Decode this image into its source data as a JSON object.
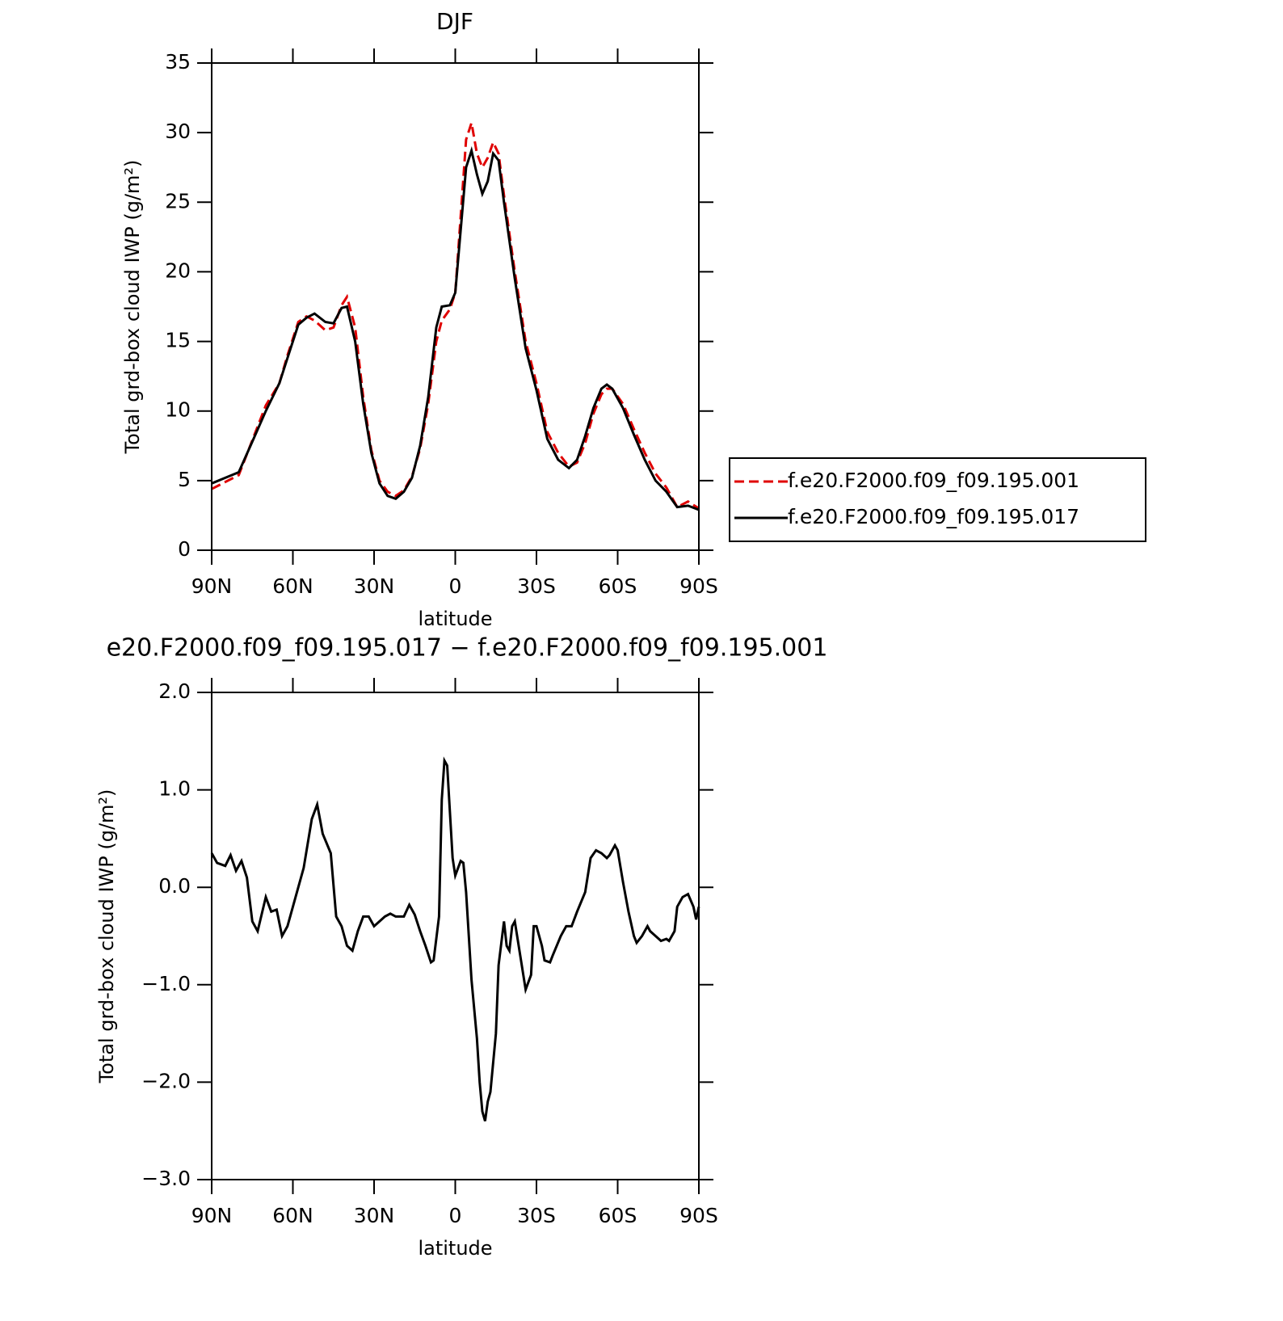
{
  "chart_data": [
    {
      "type": "line",
      "title": "DJF",
      "ylabel": "Total grd-box cloud IWP (g/m²)",
      "xlabel": "latitude",
      "xlim": [
        90,
        -90
      ],
      "xticks": [
        {
          "value": 90,
          "label": "90N"
        },
        {
          "value": 60,
          "label": "60N"
        },
        {
          "value": 30,
          "label": "30N"
        },
        0,
        {
          "value": -30,
          "label": "30S"
        },
        {
          "value": -60,
          "label": "60S"
        },
        {
          "value": -90,
          "label": "90S"
        }
      ],
      "ylim": [
        0,
        35
      ],
      "yticks": [
        0,
        5,
        10,
        15,
        20,
        25,
        30,
        35
      ],
      "legend": "right",
      "x": [
        90,
        85,
        80,
        75,
        70,
        65,
        62,
        58,
        55,
        52,
        48,
        45,
        42,
        40,
        37,
        34,
        31,
        28,
        25,
        22,
        19,
        16,
        13,
        10,
        7,
        5,
        2,
        0,
        -2,
        -4,
        -6,
        -8,
        -10,
        -12,
        -14,
        -16,
        -18,
        -22,
        -26,
        -30,
        -34,
        -38,
        -42,
        -45,
        -48,
        -51,
        -54,
        -56,
        -58,
        -62,
        -66,
        -70,
        -74,
        -78,
        -82,
        -86,
        -90
      ],
      "series": [
        {
          "name": "f.e20.F2000.f09_f09.195.001",
          "color": "#e00000",
          "style": "dashed",
          "values": [
            4.4,
            4.9,
            5.4,
            7.9,
            10.4,
            12,
            14,
            16.4,
            16.8,
            16.5,
            15.8,
            16.0,
            17.6,
            18.2,
            16,
            11,
            7.2,
            5,
            4.2,
            3.9,
            4.3,
            5.3,
            7.3,
            10.5,
            15,
            16.5,
            17.3,
            18.5,
            24,
            29.5,
            30.7,
            28.5,
            27.5,
            28.2,
            29.3,
            28.5,
            25.5,
            20,
            15,
            12,
            8.5,
            7,
            6.0,
            6.3,
            7.7,
            9.8,
            11.2,
            11.6,
            11.6,
            10.5,
            8.7,
            7,
            5.5,
            4.5,
            3.1,
            3.5,
            3.0
          ]
        },
        {
          "name": "f.e20.F2000.f09_f09.195.017",
          "color": "#000000",
          "style": "solid",
          "values": [
            4.8,
            5.2,
            5.6,
            7.8,
            10,
            12,
            13.8,
            16.2,
            16.7,
            17.0,
            16.4,
            16.3,
            17.4,
            17.5,
            15,
            10.5,
            7,
            4.8,
            3.9,
            3.7,
            4.2,
            5.2,
            7.5,
            11,
            16,
            17.5,
            17.6,
            18.5,
            23,
            27.5,
            28.7,
            27,
            25.6,
            26.5,
            28.5,
            28,
            25,
            19.5,
            14.5,
            11.5,
            8,
            6.5,
            5.9,
            6.5,
            8.2,
            10.2,
            11.6,
            11.9,
            11.6,
            10.2,
            8.3,
            6.5,
            5,
            4.2,
            3.1,
            3.2,
            2.9
          ]
        }
      ]
    },
    {
      "type": "line",
      "title": "e20.F2000.f09_f09.195.017 − f.e20.F2000.f09_f09.195.001",
      "ylabel": "Total grd-box cloud IWP (g/m²)",
      "xlabel": "latitude",
      "xlim": [
        90,
        -90
      ],
      "xticks": [
        {
          "value": 90,
          "label": "90N"
        },
        {
          "value": 60,
          "label": "60N"
        },
        {
          "value": 30,
          "label": "30N"
        },
        0,
        {
          "value": -30,
          "label": "30S"
        },
        {
          "value": -60,
          "label": "60S"
        },
        {
          "value": -90,
          "label": "90S"
        }
      ],
      "ylim": [
        -3,
        2
      ],
      "yticks": [
        {
          "value": -3,
          "label": "−3.0"
        },
        {
          "value": -2,
          "label": "−2.0"
        },
        {
          "value": -1,
          "label": "−1.0"
        },
        {
          "value": 0,
          "label": "0.0"
        },
        {
          "value": 1,
          "label": "1.0"
        },
        {
          "value": 2,
          "label": "2.0"
        }
      ],
      "x": [
        90,
        88,
        85,
        83,
        81,
        79,
        77,
        75,
        73,
        70,
        68,
        66,
        64,
        62,
        60,
        58,
        56,
        53,
        51,
        49,
        46,
        44,
        42,
        40,
        38,
        36,
        34,
        32,
        30,
        26,
        24,
        22,
        19,
        17,
        15,
        13,
        11,
        9,
        8,
        6,
        5,
        4,
        3,
        1,
        0,
        -2,
        -3,
        -4,
        -6,
        -8,
        -9,
        -10,
        -11,
        -12,
        -13,
        -15,
        -16,
        -18,
        -19,
        -20,
        -21,
        -22,
        -24,
        -26,
        -28,
        -29,
        -30,
        -32,
        -33,
        -35,
        -36,
        -39,
        -41,
        -43,
        -45,
        -48,
        -50,
        -52,
        -54,
        -56,
        -57,
        -59,
        -60,
        -62,
        -64,
        -66,
        -67,
        -69,
        -71,
        -72,
        -74,
        -76,
        -78,
        -79,
        -81,
        -82,
        -84,
        -86,
        -88,
        -89,
        -90
      ],
      "series": [
        {
          "color": "#000000",
          "style": "solid",
          "values": [
            0.35,
            0.25,
            0.22,
            0.33,
            0.17,
            0.27,
            0.1,
            -0.35,
            -0.45,
            -0.1,
            -0.25,
            -0.23,
            -0.5,
            -0.4,
            -0.2,
            0,
            0.2,
            0.7,
            0.85,
            0.55,
            0.35,
            -0.3,
            -0.4,
            -0.6,
            -0.65,
            -0.45,
            -0.3,
            -0.3,
            -0.4,
            -0.3,
            -0.27,
            -0.3,
            -0.3,
            -0.18,
            -0.28,
            -0.45,
            -0.6,
            -0.77,
            -0.75,
            -0.3,
            0.9,
            1.3,
            1.25,
            0.3,
            0.12,
            0.27,
            0.25,
            -0.05,
            -0.95,
            -1.55,
            -2.0,
            -2.3,
            -2.4,
            -2.2,
            -2.1,
            -1.5,
            -0.8,
            -0.35,
            -0.6,
            -0.65,
            -0.4,
            -0.35,
            -0.7,
            -1.05,
            -0.9,
            -0.4,
            -0.4,
            -0.6,
            -0.75,
            -0.77,
            -0.7,
            -0.5,
            -0.4,
            -0.4,
            -0.25,
            -0.05,
            0.3,
            0.38,
            0.35,
            0.3,
            0.33,
            0.43,
            0.38,
            0.05,
            -0.25,
            -0.5,
            -0.57,
            -0.5,
            -0.4,
            -0.45,
            -0.5,
            -0.55,
            -0.53,
            -0.55,
            -0.45,
            -0.2,
            -0.1,
            -0.07,
            -0.2,
            -0.33,
            -0.2
          ]
        }
      ]
    }
  ]
}
